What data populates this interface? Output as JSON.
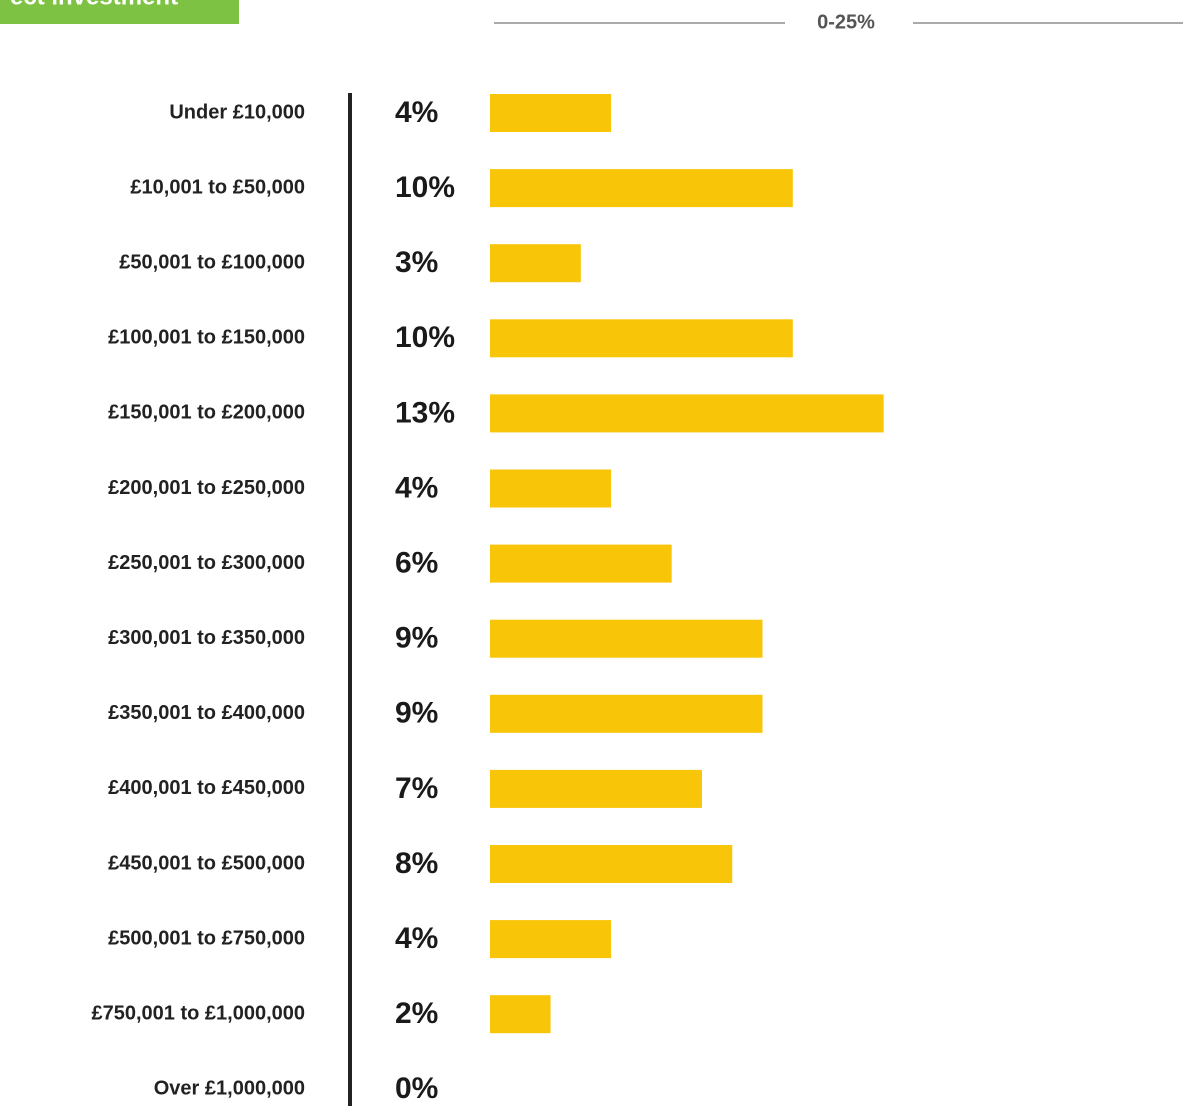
{
  "chart_data": {
    "type": "bar",
    "orientation": "horizontal",
    "title": "ect investment",
    "subtitle": "0-25%",
    "categories": [
      "Under £10,000",
      "£10,001 to £50,000",
      "£50,001 to £100,000",
      "£100,001 to £150,000",
      "£150,001 to £200,000",
      "£200,001 to £250,000",
      "£250,001 to £300,000",
      "£300,001 to £350,000",
      "£350,001 to £400,000",
      "£400,001 to £450,000",
      "£450,001 to £500,000",
      "£500,001 to £750,000",
      "£750,001 to £1,000,000",
      "Over £1,000,000"
    ],
    "values": [
      4,
      10,
      3,
      10,
      13,
      4,
      6,
      9,
      9,
      7,
      8,
      4,
      2,
      0
    ],
    "value_labels": [
      "4%",
      "10%",
      "3%",
      "10%",
      "13%",
      "4%",
      "6%",
      "9%",
      "9%",
      "7%",
      "8%",
      "4%",
      "2%",
      "0%"
    ],
    "color": "#f8c508",
    "xlim": [
      0,
      25
    ]
  }
}
